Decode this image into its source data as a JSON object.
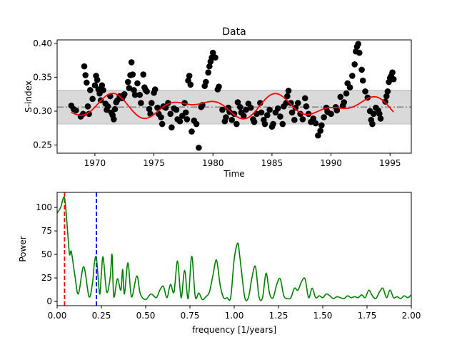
{
  "chart_data": [
    {
      "type": "scatter",
      "title": "Data",
      "xlabel": "Time",
      "ylabel": "S-index",
      "xlim": [
        1966.8,
        1996.8
      ],
      "ylim": [
        0.238,
        0.405
      ],
      "xticks": [
        1970,
        1975,
        1980,
        1985,
        1990,
        1995
      ],
      "xtick_labels": [
        "1970",
        "1975",
        "1980",
        "1985",
        "1990",
        "1995"
      ],
      "yticks": [
        0.25,
        0.3,
        0.35,
        0.4
      ],
      "ytick_labels": [
        "0.25",
        "0.30",
        "0.35",
        "0.40"
      ],
      "band": {
        "lower": 0.281,
        "upper": 0.331,
        "color": "#d9d9d9"
      },
      "mean_line": {
        "y": 0.306,
        "color": "#808080",
        "style": "dash-dot"
      },
      "fit": {
        "color": "#ff0000",
        "mean": 0.3065,
        "amp1": 0.0115,
        "period1": 7.15,
        "phase1": 1969.5,
        "amp2": 0.0085,
        "period2": 4.5,
        "phase2": 1970.5,
        "x_start": 1968.0,
        "x_end": 1995.3
      },
      "series": [
        {
          "name": "observations",
          "color": "#000000",
          "points": [
            [
              1968.0,
              0.308
            ],
            [
              1968.2,
              0.303
            ],
            [
              1968.4,
              0.301
            ],
            [
              1968.8,
              0.292
            ],
            [
              1969.0,
              0.296
            ],
            [
              1969.1,
              0.366
            ],
            [
              1969.2,
              0.353
            ],
            [
              1969.3,
              0.342
            ],
            [
              1969.4,
              0.307
            ],
            [
              1969.5,
              0.296
            ],
            [
              1969.6,
              0.331
            ],
            [
              1969.8,
              0.318
            ],
            [
              1970.0,
              0.338
            ],
            [
              1970.1,
              0.352
            ],
            [
              1970.2,
              0.346
            ],
            [
              1970.3,
              0.332
            ],
            [
              1970.4,
              0.326
            ],
            [
              1970.5,
              0.316
            ],
            [
              1970.6,
              0.338
            ],
            [
              1970.7,
              0.331
            ],
            [
              1970.9,
              0.311
            ],
            [
              1971.0,
              0.302
            ],
            [
              1971.1,
              0.307
            ],
            [
              1971.3,
              0.322
            ],
            [
              1971.4,
              0.298
            ],
            [
              1971.5,
              0.294
            ],
            [
              1971.6,
              0.288
            ],
            [
              1971.7,
              0.303
            ],
            [
              1971.8,
              0.313
            ],
            [
              1971.9,
              0.316
            ],
            [
              1972.1,
              0.322
            ],
            [
              1972.2,
              0.321
            ],
            [
              1972.3,
              0.319
            ],
            [
              1972.4,
              0.322
            ],
            [
              1972.5,
              0.325
            ],
            [
              1972.8,
              0.343
            ],
            [
              1972.9,
              0.334
            ],
            [
              1973.0,
              0.353
            ],
            [
              1973.1,
              0.372
            ],
            [
              1973.2,
              0.354
            ],
            [
              1973.3,
              0.331
            ],
            [
              1973.4,
              0.324
            ],
            [
              1973.6,
              0.341
            ],
            [
              1973.8,
              0.324
            ],
            [
              1973.9,
              0.312
            ],
            [
              1974.1,
              0.354
            ],
            [
              1974.2,
              0.335
            ],
            [
              1974.3,
              0.331
            ],
            [
              1974.4,
              0.329
            ],
            [
              1974.6,
              0.303
            ],
            [
              1974.7,
              0.296
            ],
            [
              1974.8,
              0.312
            ],
            [
              1975.0,
              0.327
            ],
            [
              1975.1,
              0.332
            ],
            [
              1975.3,
              0.305
            ],
            [
              1975.4,
              0.296
            ],
            [
              1975.6,
              0.291
            ],
            [
              1975.7,
              0.281
            ],
            [
              1975.8,
              0.307
            ],
            [
              1976.0,
              0.305
            ],
            [
              1976.2,
              0.312
            ],
            [
              1976.4,
              0.296
            ],
            [
              1976.5,
              0.276
            ],
            [
              1976.7,
              0.304
            ],
            [
              1976.9,
              0.302
            ],
            [
              1977.0,
              0.288
            ],
            [
              1977.2,
              0.285
            ],
            [
              1977.4,
              0.293
            ],
            [
              1977.6,
              0.312
            ],
            [
              1977.7,
              0.298
            ],
            [
              1977.8,
              0.288
            ],
            [
              1977.9,
              0.345
            ],
            [
              1978.0,
              0.352
            ],
            [
              1978.1,
              0.339
            ],
            [
              1978.2,
              0.27
            ],
            [
              1978.4,
              0.286
            ],
            [
              1978.6,
              0.281
            ],
            [
              1978.8,
              0.246
            ],
            [
              1979.0,
              0.306
            ],
            [
              1979.1,
              0.309
            ],
            [
              1979.3,
              0.337
            ],
            [
              1979.4,
              0.343
            ],
            [
              1979.6,
              0.357
            ],
            [
              1979.7,
              0.366
            ],
            [
              1979.8,
              0.373
            ],
            [
              1979.9,
              0.379
            ],
            [
              1980.0,
              0.386
            ],
            [
              1980.2,
              0.379
            ],
            [
              1980.4,
              0.332
            ],
            [
              1980.5,
              0.336
            ],
            [
              1980.8,
              0.302
            ],
            [
              1981.0,
              0.285
            ],
            [
              1981.1,
              0.291
            ],
            [
              1981.3,
              0.305
            ],
            [
              1981.4,
              0.299
            ],
            [
              1981.6,
              0.287
            ],
            [
              1981.8,
              0.296
            ],
            [
              1982.0,
              0.281
            ],
            [
              1982.1,
              0.313
            ],
            [
              1982.3,
              0.306
            ],
            [
              1982.4,
              0.298
            ],
            [
              1982.6,
              0.293
            ],
            [
              1982.8,
              0.302
            ],
            [
              1983.0,
              0.311
            ],
            [
              1983.2,
              0.305
            ],
            [
              1983.4,
              0.288
            ],
            [
              1983.5,
              0.284
            ],
            [
              1983.7,
              0.296
            ],
            [
              1984.0,
              0.312
            ],
            [
              1984.1,
              0.298
            ],
            [
              1984.3,
              0.287
            ],
            [
              1984.4,
              0.281
            ],
            [
              1984.6,
              0.294
            ],
            [
              1984.8,
              0.302
            ],
            [
              1985.0,
              0.277
            ],
            [
              1985.1,
              0.281
            ],
            [
              1985.3,
              0.298
            ],
            [
              1985.5,
              0.304
            ],
            [
              1985.7,
              0.292
            ],
            [
              1985.9,
              0.281
            ],
            [
              1986.0,
              0.307
            ],
            [
              1986.2,
              0.312
            ],
            [
              1986.3,
              0.322
            ],
            [
              1986.4,
              0.33
            ],
            [
              1986.6,
              0.312
            ],
            [
              1986.7,
              0.298
            ],
            [
              1986.9,
              0.287
            ],
            [
              1987.0,
              0.305
            ],
            [
              1987.2,
              0.312
            ],
            [
              1987.4,
              0.296
            ],
            [
              1987.6,
              0.288
            ],
            [
              1987.8,
              0.319
            ],
            [
              1987.9,
              0.307
            ],
            [
              1988.1,
              0.296
            ],
            [
              1988.3,
              0.284
            ],
            [
              1988.5,
              0.289
            ],
            [
              1988.7,
              0.282
            ],
            [
              1988.9,
              0.264
            ],
            [
              1989.1,
              0.271
            ],
            [
              1989.2,
              0.279
            ],
            [
              1989.4,
              0.291
            ],
            [
              1989.6,
              0.305
            ],
            [
              1989.7,
              0.299
            ],
            [
              1990.0,
              0.296
            ],
            [
              1990.4,
              0.306
            ],
            [
              1990.5,
              0.301
            ],
            [
              1990.8,
              0.321
            ],
            [
              1991.0,
              0.308
            ],
            [
              1991.1,
              0.313
            ],
            [
              1991.3,
              0.326
            ],
            [
              1991.4,
              0.341
            ],
            [
              1991.6,
              0.335
            ],
            [
              1991.8,
              0.352
            ],
            [
              1992.0,
              0.369
            ],
            [
              1992.1,
              0.388
            ],
            [
              1992.2,
              0.395
            ],
            [
              1992.3,
              0.399
            ],
            [
              1992.4,
              0.386
            ],
            [
              1992.6,
              0.361
            ],
            [
              1992.7,
              0.345
            ],
            [
              1992.9,
              0.329
            ],
            [
              1993.1,
              0.32
            ],
            [
              1993.3,
              0.3
            ],
            [
              1993.4,
              0.287
            ],
            [
              1993.5,
              0.281
            ],
            [
              1993.6,
              0.296
            ],
            [
              1993.8,
              0.305
            ],
            [
              1994.0,
              0.301
            ],
            [
              1994.1,
              0.296
            ],
            [
              1994.2,
              0.289
            ],
            [
              1994.6,
              0.314
            ],
            [
              1994.7,
              0.322
            ],
            [
              1994.8,
              0.329
            ],
            [
              1994.9,
              0.343
            ],
            [
              1995.0,
              0.349
            ],
            [
              1995.1,
              0.352
            ],
            [
              1995.2,
              0.357
            ],
            [
              1995.3,
              0.347
            ]
          ]
        }
      ]
    },
    {
      "type": "line",
      "title": "",
      "xlabel": "frequency [1/years]",
      "ylabel": "Power",
      "xlim": [
        0.0,
        2.0
      ],
      "ylim": [
        -4.5,
        116
      ],
      "xticks": [
        0.0,
        0.25,
        0.5,
        0.75,
        1.0,
        1.25,
        1.5,
        1.75,
        2.0
      ],
      "xtick_labels": [
        "0.00",
        "0.25",
        "0.50",
        "0.75",
        "1.00",
        "1.25",
        "1.50",
        "1.75",
        "2.00"
      ],
      "yticks": [
        0,
        25,
        50,
        75,
        100
      ],
      "ytick_labels": [
        "0",
        "25",
        "50",
        "75",
        "100"
      ],
      "vlines": [
        {
          "x": 0.042,
          "color": "#ff0000",
          "style": "dashed"
        },
        {
          "x": 0.222,
          "color": "#0000ff",
          "style": "dashed"
        }
      ],
      "series": [
        {
          "name": "periodogram",
          "color": "#008000",
          "x": [
            0.0,
            0.02,
            0.042,
            0.06,
            0.07,
            0.08,
            0.1,
            0.12,
            0.15,
            0.18,
            0.2,
            0.21,
            0.222,
            0.24,
            0.25,
            0.26,
            0.28,
            0.3,
            0.31,
            0.32,
            0.34,
            0.36,
            0.37,
            0.38,
            0.4,
            0.42,
            0.45,
            0.47,
            0.5,
            0.53,
            0.56,
            0.58,
            0.6,
            0.62,
            0.64,
            0.66,
            0.68,
            0.7,
            0.72,
            0.74,
            0.76,
            0.78,
            0.8,
            0.82,
            0.84,
            0.86,
            0.88,
            0.9,
            0.92,
            0.94,
            0.96,
            0.98,
            1.0,
            1.02,
            1.03,
            1.04,
            1.06,
            1.08,
            1.1,
            1.12,
            1.14,
            1.16,
            1.18,
            1.2,
            1.22,
            1.24,
            1.26,
            1.28,
            1.3,
            1.32,
            1.34,
            1.36,
            1.38,
            1.4,
            1.42,
            1.44,
            1.46,
            1.48,
            1.5,
            1.52,
            1.54,
            1.56,
            1.58,
            1.6,
            1.62,
            1.64,
            1.66,
            1.68,
            1.7,
            1.72,
            1.74,
            1.76,
            1.78,
            1.8,
            1.82,
            1.84,
            1.86,
            1.88,
            1.9,
            1.92,
            1.94,
            1.96,
            1.98,
            2.0
          ],
          "values": [
            94,
            100,
            110,
            72,
            50,
            53,
            28,
            8,
            37,
            5,
            20,
            40,
            46,
            8,
            30,
            47,
            10,
            26,
            50,
            5,
            24,
            12,
            34,
            8,
            41,
            5,
            27,
            8,
            2,
            8,
            4,
            12,
            16,
            4,
            18,
            10,
            43,
            4,
            33,
            3,
            48,
            5,
            9,
            2,
            5,
            10,
            28,
            44,
            18,
            4,
            4,
            4,
            45,
            62,
            50,
            34,
            4,
            4,
            25,
            37,
            5,
            4,
            30,
            8,
            4,
            18,
            24,
            6,
            3,
            4,
            14,
            12,
            21,
            24,
            4,
            14,
            4,
            6,
            4,
            8,
            6,
            3,
            5,
            4,
            3,
            6,
            4,
            5,
            4,
            7,
            4,
            12,
            6,
            3,
            10,
            14,
            4,
            12,
            4,
            5,
            3,
            6,
            4,
            7
          ]
        }
      ]
    }
  ]
}
